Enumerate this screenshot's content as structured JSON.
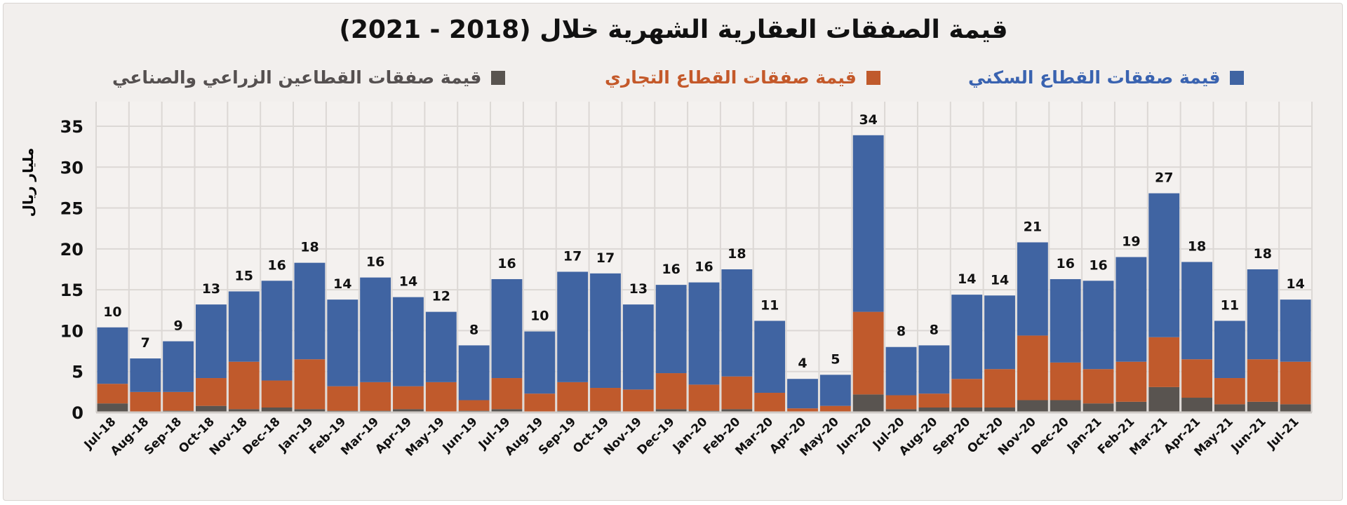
{
  "chart_data": {
    "type": "bar",
    "stacked": true,
    "title": "قيمة الصفقات العقارية الشهرية خلال (2018 - 2021)",
    "ylabel": "مليار ريال",
    "xlabel": "",
    "ylim": [
      0,
      38
    ],
    "yticks": [
      0,
      5,
      10,
      15,
      20,
      25,
      30,
      35
    ],
    "grid": true,
    "legend_position": "top",
    "categories": [
      "Jul-18",
      "Aug-18",
      "Sep-18",
      "Oct-18",
      "Nov-18",
      "Dec-18",
      "Jan-19",
      "Feb-19",
      "Mar-19",
      "Apr-19",
      "May-19",
      "Jun-19",
      "Jul-19",
      "Aug-19",
      "Sep-19",
      "Oct-19",
      "Nov-19",
      "Dec-19",
      "Jan-20",
      "Feb-20",
      "Mar-20",
      "Apr-20",
      "May-20",
      "Jun-20",
      "Jul-20",
      "Aug-20",
      "Sep-20",
      "Oct-20",
      "Nov-20",
      "Dec-20",
      "Jan-21",
      "Feb-21",
      "Mar-21",
      "Apr-21",
      "May-21",
      "Jun-21",
      "Jul-21"
    ],
    "series": [
      {
        "name": "قيمة صفقات القطاعين الزراعي والصناعي",
        "color": "#595450",
        "values": [
          1.1,
          0.1,
          0.2,
          0.8,
          0.4,
          0.6,
          0.4,
          0.2,
          0.2,
          0.4,
          0.1,
          0.2,
          0.4,
          0.1,
          0.2,
          0.2,
          0.1,
          0.4,
          0.2,
          0.4,
          0.1,
          0.0,
          0.1,
          2.2,
          0.4,
          0.6,
          0.6,
          0.6,
          1.5,
          1.5,
          1.1,
          1.3,
          3.1,
          1.8,
          1.0,
          1.3,
          1.0
        ]
      },
      {
        "name": "قيمة صفقات القطاع التجاري",
        "color": "#c05a2c",
        "values": [
          2.4,
          2.4,
          2.3,
          3.4,
          5.8,
          3.3,
          6.1,
          3.0,
          3.5,
          2.8,
          3.6,
          1.3,
          3.8,
          2.2,
          3.5,
          2.8,
          2.7,
          4.4,
          3.2,
          4.0,
          2.3,
          0.5,
          0.7,
          10.1,
          1.7,
          1.7,
          3.5,
          4.7,
          7.9,
          4.6,
          4.2,
          4.9,
          6.1,
          4.7,
          3.2,
          5.2,
          5.2
        ]
      },
      {
        "name": "قيمة صفقات القطاع السكني",
        "color": "#4064a2",
        "values": [
          6.9,
          4.1,
          6.2,
          9.0,
          8.6,
          12.2,
          11.8,
          10.6,
          12.8,
          10.9,
          8.6,
          6.7,
          12.1,
          7.6,
          13.5,
          14.0,
          10.4,
          10.8,
          12.5,
          13.1,
          8.8,
          3.6,
          3.8,
          21.6,
          5.9,
          5.9,
          10.3,
          9.0,
          11.4,
          10.2,
          10.8,
          12.8,
          17.6,
          11.9,
          7.0,
          11.0,
          7.6
        ]
      }
    ],
    "totals_labels": [
      "10",
      "7",
      "9",
      "13",
      "15",
      "16",
      "18",
      "14",
      "16",
      "14",
      "12",
      "8",
      "16",
      "10",
      "17",
      "17",
      "13",
      "16",
      "16",
      "18",
      "11",
      "4",
      "5",
      "34",
      "8",
      "8",
      "14",
      "14",
      "21",
      "16",
      "16",
      "19",
      "27",
      "18",
      "11",
      "18",
      "14"
    ]
  },
  "legend_text_colors": {
    "residential": "#3a63b0",
    "commercial": "#c4592a",
    "agri": "#555050"
  }
}
